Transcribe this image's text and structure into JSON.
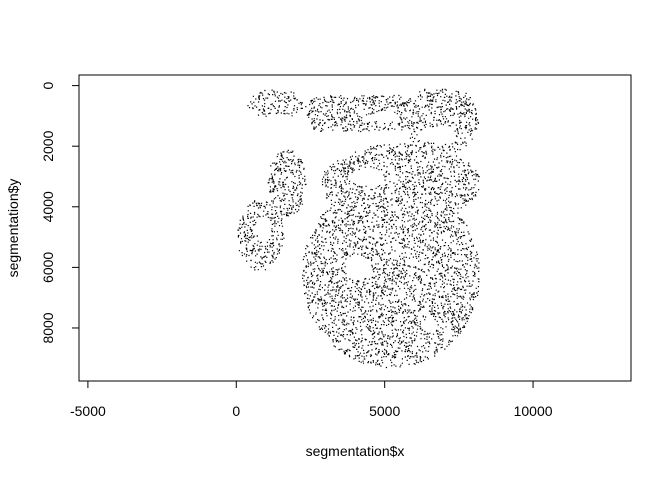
{
  "chart_data": {
    "type": "scatter",
    "title": "",
    "xlabel": "segmentation$x",
    "ylabel": "segmentation$y",
    "xlim": [
      -5300,
      13300
    ],
    "ylim": [
      -350,
      9750
    ],
    "y_reversed": true,
    "grid": false,
    "x_ticks": [
      "-5000",
      "0",
      "5000",
      "10000"
    ],
    "x_tick_values": [
      -5000,
      0,
      5000,
      10000
    ],
    "y_ticks": [
      "0",
      "2000",
      "4000",
      "6000",
      "8000"
    ],
    "y_tick_values": [
      0,
      2000,
      4000,
      6000,
      8000
    ],
    "point_color": "#000000",
    "series": [
      {
        "values_description": "dense point cloud (cell segmentation centroids)",
        "regions": [
          {
            "part": "upper-left lobe",
            "x_range": [
              300,
              2200
            ],
            "y_range": [
              150,
              1500
            ]
          },
          {
            "part": "upper band",
            "x_range": [
              2200,
              6000
            ],
            "y_range": [
              200,
              1700
            ]
          },
          {
            "part": "upper-right lobe",
            "x_range": [
              5200,
              8100
            ],
            "y_range": [
              200,
              2300
            ]
          },
          {
            "part": "left appendage",
            "x_range": [
              0,
              1700
            ],
            "y_range": [
              3600,
              6100
            ]
          },
          {
            "part": "left arm",
            "x_range": [
              800,
              2600
            ],
            "y_range": [
              2000,
              4300
            ]
          },
          {
            "part": "main body",
            "x_range": [
              2000,
              8200
            ],
            "y_range": [
              2200,
              9300
            ]
          }
        ]
      }
    ]
  }
}
